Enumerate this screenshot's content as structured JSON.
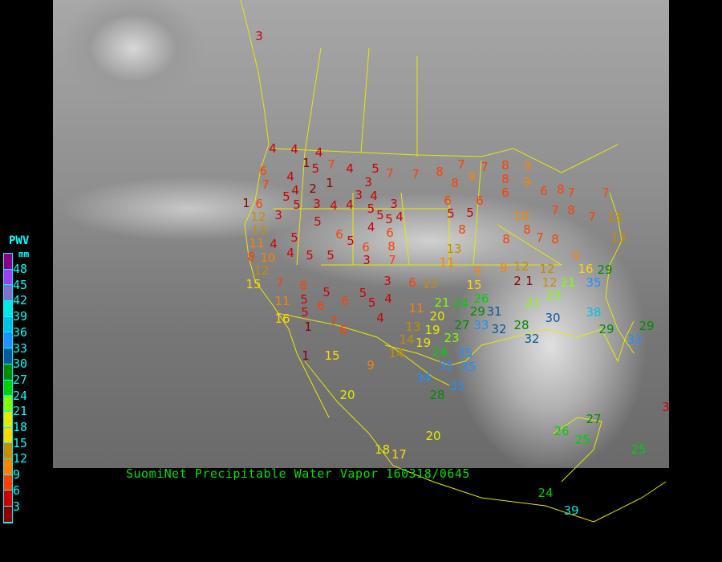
{
  "title": "SuomiNet Precipitable Water Vapor 160318/0645",
  "legend": {
    "title": "PWV",
    "unit": "mm",
    "labels": [
      "48",
      "45",
      "42",
      "39",
      "36",
      "33",
      "30",
      "27",
      "24",
      "21",
      "18",
      "15",
      "12",
      "9",
      "6",
      "3"
    ],
    "colors": [
      "#8b008b",
      "#9b40f0",
      "#8070d0",
      "#00e8e8",
      "#00c0e8",
      "#1e90ff",
      "#005a9c",
      "#008c00",
      "#00d000",
      "#80ff00",
      "#e8e800",
      "#ffd700",
      "#c88c00",
      "#ff8000",
      "#ff4000",
      "#d00000",
      "#8b0000"
    ]
  },
  "stations": [
    "3",
    "4",
    "4",
    "4",
    "1",
    "7",
    "4",
    "5",
    "7",
    "7",
    "8",
    "7",
    "8",
    "9",
    "7",
    "8",
    "9",
    "8",
    "9",
    "6",
    "4",
    "5",
    "4",
    "2",
    "1",
    "3",
    "4",
    "3",
    "5",
    "7",
    "1",
    "6",
    "5",
    "3",
    "4",
    "4",
    "5",
    "3",
    "6",
    "6",
    "6",
    "6",
    "8",
    "7",
    "7",
    "12",
    "3",
    "5",
    "5",
    "5",
    "4",
    "5",
    "5",
    "10",
    "7",
    "8",
    "7",
    "13",
    "13",
    "11",
    "4",
    "5",
    "6",
    "5",
    "4",
    "6",
    "8",
    "8",
    "8",
    "8",
    "7",
    "8",
    "13",
    "8",
    "10",
    "4",
    "5",
    "5",
    "6",
    "3",
    "7",
    "13",
    "11",
    "9",
    "9",
    "12",
    "12",
    "9",
    "16",
    "29",
    "15",
    "12",
    "7",
    "8",
    "5",
    "5",
    "3",
    "6",
    "13",
    "15",
    "2",
    "1",
    "12",
    "21",
    "35",
    "11",
    "5",
    "6",
    "6",
    "5",
    "4",
    "11",
    "21",
    "24",
    "26",
    "29",
    "31",
    "21",
    "23",
    "38",
    "16",
    "5",
    "1",
    "7",
    "6",
    "4",
    "20",
    "19",
    "27",
    "23",
    "33",
    "32",
    "28",
    "30",
    "29",
    "29",
    "33",
    "13",
    "14",
    "19",
    "32",
    "1",
    "15",
    "14",
    "24",
    "35",
    "9",
    "35",
    "35",
    "34",
    "35",
    "28",
    "20",
    "3",
    "27",
    "26",
    "25",
    "20",
    "18",
    "25",
    "17",
    "24",
    "39"
  ]
}
